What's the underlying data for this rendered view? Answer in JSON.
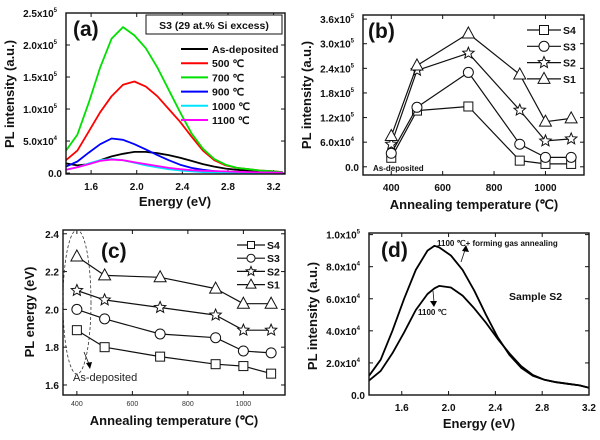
{
  "chart_data": [
    {
      "id": "a",
      "type": "line",
      "panel_label": "(a)",
      "title_box": "S3 (29 at.% Si excess)",
      "xlabel": "Energy (eV)",
      "ylabel": "PL intensity (a.u.)",
      "xlim": [
        1.38,
        3.3
      ],
      "ylim": [
        -1500,
        250000
      ],
      "xticks": [
        {
          "v": 1.6,
          "t": "1.6"
        },
        {
          "v": 2.0,
          "t": "2.0"
        },
        {
          "v": 2.4,
          "t": "2.4"
        },
        {
          "v": 2.8,
          "t": "2.8"
        },
        {
          "v": 3.2,
          "t": "3.2"
        }
      ],
      "yticks": [
        {
          "v": 0,
          "t": "0.0",
          "e": ""
        },
        {
          "v": 50000,
          "t": "5.0x10",
          "e": "4"
        },
        {
          "v": 100000,
          "t": "1.0x10",
          "e": "5"
        },
        {
          "v": 150000,
          "t": "1.5x10",
          "e": "5"
        },
        {
          "v": 200000,
          "t": "2.0x10",
          "e": "5"
        },
        {
          "v": 250000,
          "t": "2.5x10",
          "e": "5"
        }
      ],
      "legend_position": "top-right",
      "x": [
        1.38,
        1.48,
        1.58,
        1.68,
        1.78,
        1.88,
        1.98,
        2.08,
        2.18,
        2.28,
        2.38,
        2.48,
        2.58,
        2.68,
        2.78,
        2.88,
        2.98,
        3.08,
        3.18,
        3.28
      ],
      "series": [
        {
          "name": "As-deposited",
          "color": "#000000",
          "values": [
            15000,
            12000,
            14000,
            20000,
            26000,
            30000,
            33000,
            33000,
            31000,
            28000,
            24000,
            19000,
            14000,
            10000,
            7000,
            5000,
            3500,
            2500,
            1500,
            800
          ]
        },
        {
          "name": "500 ℃",
          "color": "#ff0000",
          "values": [
            20000,
            35000,
            65000,
            95000,
            120000,
            138000,
            143000,
            135000,
            120000,
            100000,
            80000,
            57000,
            35000,
            20000,
            12000,
            8000,
            6000,
            4000,
            3000,
            1500
          ]
        },
        {
          "name": "700 ℃",
          "color": "#00e000",
          "values": [
            35000,
            60000,
            110000,
            165000,
            210000,
            228000,
            215000,
            195000,
            165000,
            130000,
            95000,
            62000,
            38000,
            22000,
            13000,
            8000,
            6000,
            4000,
            3000,
            1500
          ]
        },
        {
          "name": "900 ℃",
          "color": "#0000ff",
          "values": [
            10000,
            18000,
            32000,
            45000,
            54000,
            52000,
            45000,
            37000,
            28000,
            20000,
            13000,
            8000,
            5000,
            3000,
            2000,
            1500,
            1000,
            800,
            600,
            400
          ]
        },
        {
          "name": "1000 ℃",
          "color": "#00e5ff",
          "values": [
            5000,
            9000,
            15000,
            20000,
            22000,
            20000,
            16000,
            12000,
            9000,
            6000,
            4000,
            2500,
            1500,
            1000,
            700,
            500,
            400,
            300,
            200,
            100
          ]
        },
        {
          "name": "1100 ℃",
          "color": "#ff00ff",
          "values": [
            5000,
            9000,
            14000,
            19000,
            21000,
            20000,
            17000,
            14000,
            11000,
            8000,
            6000,
            4500,
            3500,
            3000,
            2500,
            2000,
            1500,
            1000,
            800,
            500
          ]
        }
      ]
    },
    {
      "id": "b",
      "type": "line",
      "panel_label": "(b)",
      "xlabel": "Annealing temperature (℃)",
      "ylabel": "PL intensity (a.u.)",
      "xlim": [
        290,
        1150
      ],
      "ylim": [
        -20000,
        370000
      ],
      "xticks": [
        {
          "v": 400,
          "t": "400"
        },
        {
          "v": 600,
          "t": "600"
        },
        {
          "v": 800,
          "t": "800"
        },
        {
          "v": 1000,
          "t": "1000"
        }
      ],
      "yticks": [
        {
          "v": 0,
          "t": "0.0",
          "e": ""
        },
        {
          "v": 60000,
          "t": "6.0x10",
          "e": "4"
        },
        {
          "v": 120000,
          "t": "1.2x10",
          "e": "5"
        },
        {
          "v": 180000,
          "t": "1.8x10",
          "e": "5"
        },
        {
          "v": 240000,
          "t": "2.4x10",
          "e": "5"
        },
        {
          "v": 300000,
          "t": "3.0x10",
          "e": "5"
        },
        {
          "v": 360000,
          "t": "3.6x10",
          "e": "5"
        }
      ],
      "annotation": "As-deposited",
      "legend_position": "top-right",
      "x": [
        400,
        500,
        700,
        900,
        1000,
        1100
      ],
      "series": [
        {
          "name": "S4",
          "marker": "square",
          "values": [
            22000,
            137000,
            147000,
            15000,
            7000,
            7000
          ]
        },
        {
          "name": "S3",
          "marker": "circle",
          "values": [
            33000,
            145000,
            230000,
            55000,
            23000,
            23000
          ]
        },
        {
          "name": "S2",
          "marker": "star",
          "values": [
            55000,
            235000,
            277000,
            138000,
            63000,
            68000
          ]
        },
        {
          "name": "S1",
          "marker": "triangle",
          "values": [
            75000,
            247000,
            325000,
            225000,
            110000,
            118000
          ]
        }
      ]
    },
    {
      "id": "c",
      "type": "line",
      "panel_label": "(c)",
      "xlabel": "Annealing temperature (℃)",
      "ylabel": "PL energy (eV)",
      "xlim": [
        350,
        1150
      ],
      "ylim": [
        1.547,
        2.42
      ],
      "xticks": [
        {
          "v": 400,
          "t": "400"
        },
        {
          "v": 600,
          "t": "600"
        },
        {
          "v": 800,
          "t": "800"
        },
        {
          "v": 1000,
          "t": "1000"
        }
      ],
      "yticks": [
        {
          "v": 1.6,
          "t": "1.6",
          "e": ""
        },
        {
          "v": 1.8,
          "t": "1.8",
          "e": ""
        },
        {
          "v": 2.0,
          "t": "2.0",
          "e": ""
        },
        {
          "v": 2.2,
          "t": "2.2",
          "e": ""
        },
        {
          "v": 2.4,
          "t": "2.4",
          "e": ""
        }
      ],
      "annotation": "As-deposited",
      "legend_position": "top-right",
      "x": [
        400,
        500,
        700,
        900,
        1000,
        1100
      ],
      "series": [
        {
          "name": "S4",
          "marker": "square",
          "values": [
            1.89,
            1.8,
            1.75,
            1.71,
            1.7,
            1.66
          ]
        },
        {
          "name": "S3",
          "marker": "circle",
          "values": [
            2.0,
            1.95,
            1.87,
            1.85,
            1.78,
            1.77
          ]
        },
        {
          "name": "S2",
          "marker": "star",
          "values": [
            2.1,
            2.05,
            2.01,
            1.97,
            1.89,
            1.89
          ]
        },
        {
          "name": "S1",
          "marker": "triangle",
          "values": [
            2.28,
            2.18,
            2.17,
            2.11,
            2.03,
            2.03
          ]
        }
      ]
    },
    {
      "id": "d",
      "type": "line",
      "panel_label": "(d)",
      "xlabel": "Energy (eV)",
      "ylabel": "PL intensity (a.u.)",
      "xlim": [
        1.32,
        3.2
      ],
      "ylim": [
        0,
        101000
      ],
      "xticks": [
        {
          "v": 1.6,
          "t": "1.6"
        },
        {
          "v": 2.0,
          "t": "2.0"
        },
        {
          "v": 2.4,
          "t": "2.4"
        },
        {
          "v": 2.8,
          "t": "2.8"
        },
        {
          "v": 3.2,
          "t": "3.2"
        }
      ],
      "yticks": [
        {
          "v": 0,
          "t": "0.0",
          "e": ""
        },
        {
          "v": 20000,
          "t": "2.0x10",
          "e": "4"
        },
        {
          "v": 40000,
          "t": "4.0x10",
          "e": "4"
        },
        {
          "v": 60000,
          "t": "6.0x10",
          "e": "4"
        },
        {
          "v": 80000,
          "t": "8.0x10",
          "e": "4"
        },
        {
          "v": 100000,
          "t": "1.0x10",
          "e": "5"
        }
      ],
      "sample_label": "Sample S2",
      "x": [
        1.32,
        1.42,
        1.52,
        1.62,
        1.72,
        1.82,
        1.88,
        1.92,
        2.02,
        2.12,
        2.22,
        2.32,
        2.42,
        2.52,
        2.62,
        2.72,
        2.82,
        2.92,
        3.02,
        3.12,
        3.2
      ],
      "series": [
        {
          "name": "1100 ℃+ forming gas annealing",
          "color": "#000000",
          "values": [
            12000,
            22000,
            40000,
            60000,
            78000,
            90000,
            93000,
            92000,
            87000,
            78000,
            65000,
            50000,
            36000,
            25000,
            17000,
            12000,
            9500,
            8000,
            7000,
            6000,
            4500
          ]
        },
        {
          "name": "1100 ℃",
          "color": "#000000",
          "values": [
            9000,
            15000,
            26000,
            39000,
            53000,
            63000,
            66500,
            68000,
            67000,
            62000,
            54000,
            45000,
            35000,
            26000,
            18000,
            12500,
            9500,
            8000,
            7000,
            6000,
            4500
          ]
        }
      ]
    }
  ]
}
